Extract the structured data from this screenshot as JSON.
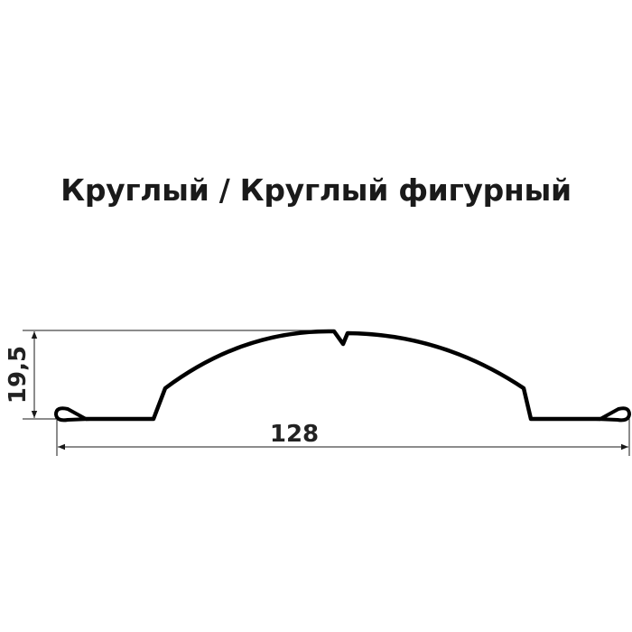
{
  "title": "Круглый / Круглый фигурный",
  "dimensions": {
    "height": "19,5",
    "width": "128"
  },
  "colors": {
    "profile": "#000000",
    "dimension_lines": "#1a1a1a"
  }
}
